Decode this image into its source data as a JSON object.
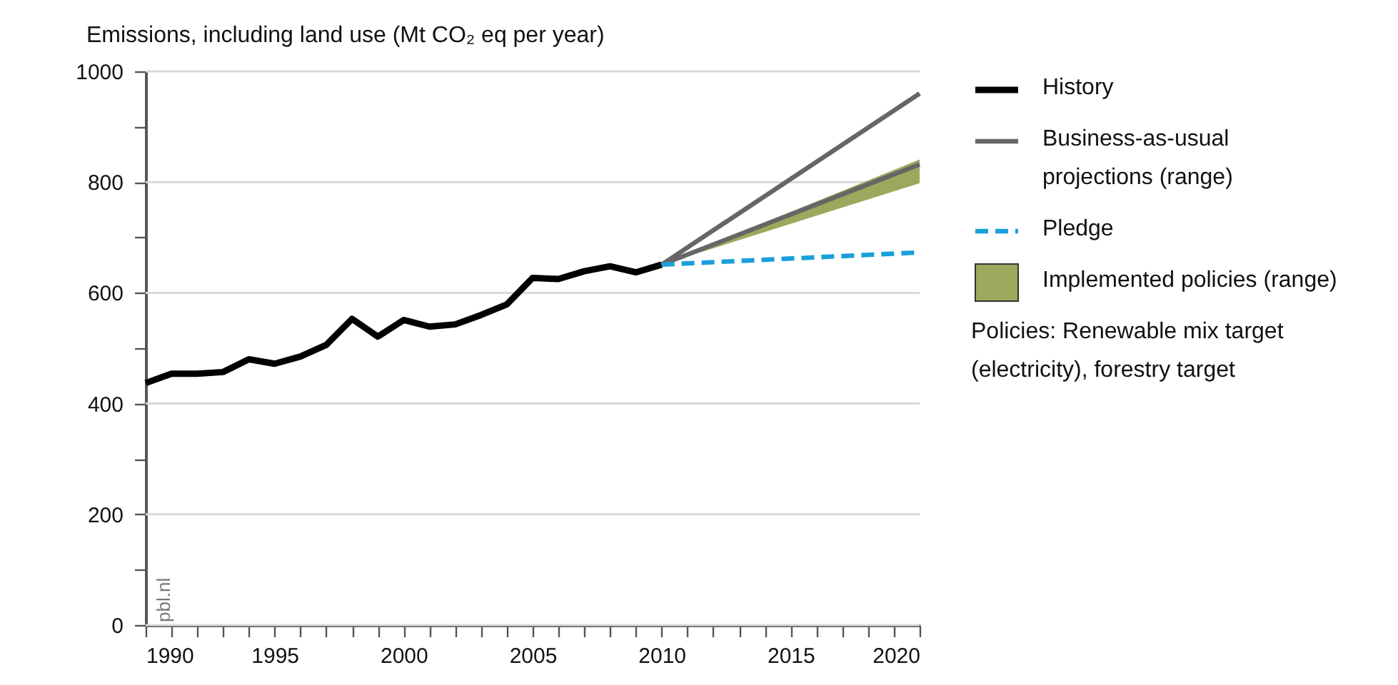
{
  "chart_data": {
    "type": "line",
    "ylabel": "Emissions, including land use (Mt CO₂ eq per year)",
    "xlim": [
      1990,
      2020
    ],
    "xticks": [
      1990,
      {
        "value": 1991,
        "label": null
      },
      {
        "value": 1992,
        "label": null
      },
      {
        "value": 1993,
        "label": null
      },
      {
        "value": 1994,
        "label": null
      },
      1995,
      {
        "value": 1996,
        "label": null
      },
      {
        "value": 1997,
        "label": null
      },
      {
        "value": 1998,
        "label": null
      },
      {
        "value": 1999,
        "label": null
      },
      2000,
      {
        "value": 2001,
        "label": null
      },
      {
        "value": 2002,
        "label": null
      },
      {
        "value": 2003,
        "label": null
      },
      {
        "value": 2004,
        "label": null
      },
      2005,
      {
        "value": 2006,
        "label": null
      },
      {
        "value": 2007,
        "label": null
      },
      {
        "value": 2008,
        "label": null
      },
      {
        "value": 2009,
        "label": null
      },
      2010,
      {
        "value": 2011,
        "label": null
      },
      {
        "value": 2012,
        "label": null
      },
      {
        "value": 2013,
        "label": null
      },
      {
        "value": 2014,
        "label": null
      },
      2015,
      {
        "value": 2016,
        "label": null
      },
      {
        "value": 2017,
        "label": null
      },
      {
        "value": 2018,
        "label": null
      },
      {
        "value": 2019,
        "label": null
      },
      2020
    ],
    "ylim": [
      0,
      1000
    ],
    "yticks": [
      0,
      {
        "value": 100,
        "label": null
      },
      200,
      {
        "value": 300,
        "label": null
      },
      400,
      {
        "value": 500,
        "label": null
      },
      600,
      {
        "value": 700,
        "label": null
      },
      800,
      {
        "value": 900,
        "label": null
      },
      1000
    ],
    "grid": "y",
    "legend": "right",
    "annotations": [
      "Policies: Renewable mix target (electricity), forestry target",
      "pbl.nl"
    ],
    "series": [
      {
        "name": "History",
        "color": "#000000",
        "x": [
          1990,
          1991,
          1992,
          1993,
          1994,
          1995,
          1996,
          1997,
          1998,
          1999,
          2000,
          2001,
          2002,
          2003,
          2004,
          2005,
          2006,
          2007,
          2008,
          2009,
          2010
        ],
        "values": [
          437,
          454,
          454,
          457,
          480,
          472,
          485,
          506,
          553,
          521,
          551,
          539,
          543,
          560,
          579,
          627,
          625,
          639,
          648,
          637,
          651
        ]
      },
      {
        "name": "Business-as-usual projections (range)",
        "color": "#666666",
        "x": [
          2010,
          2020
        ],
        "values": [
          651,
          960
        ]
      },
      {
        "color": "#666666",
        "x": [
          2010,
          2020
        ],
        "values": [
          651,
          832
        ]
      },
      {
        "name": "Pledge",
        "color": "#1a9fd9",
        "line_style": "dashed",
        "x": [
          2010,
          2020
        ],
        "values": [
          651,
          673
        ]
      },
      {
        "name": "Implemented policies (range)",
        "type": "area",
        "color": "#9ca85c",
        "x": [
          2010,
          2020
        ],
        "values": [
          null,
          null
        ],
        "lower": [
          651,
          798
        ],
        "upper": [
          651,
          841
        ]
      }
    ]
  }
}
